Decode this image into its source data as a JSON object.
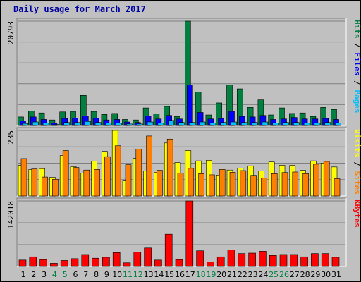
{
  "title": "Daily usage for March 2017",
  "colors": {
    "hits": "#008040",
    "files": "#0000ff",
    "pages": "#00c0ff",
    "visits": "#ffff00",
    "sites": "#ff8000",
    "kbytes": "#ff0000",
    "weekend_label": "#008040",
    "weekday_label": "#000000",
    "title": "#0000a0"
  },
  "chart_data": [
    {
      "type": "bar",
      "name": "hits-files-pages",
      "max_label": "20793",
      "ylim": [
        0,
        20793
      ],
      "grid": true,
      "legend": [
        "Pages",
        "Files",
        "Hits"
      ],
      "categories": [
        "1",
        "2",
        "3",
        "4",
        "5",
        "6",
        "7",
        "8",
        "9",
        "10",
        "11",
        "12",
        "13",
        "14",
        "15",
        "16",
        "17",
        "18",
        "19",
        "20",
        "21",
        "22",
        "23",
        "24",
        "25",
        "26",
        "27",
        "28",
        "29",
        "30",
        "31"
      ],
      "weekend_days": [
        4,
        5,
        11,
        12,
        18,
        19,
        25,
        26
      ],
      "series": [
        {
          "name": "Hits",
          "values": [
            1700,
            2900,
            2500,
            1100,
            2700,
            2800,
            6000,
            2800,
            2200,
            2400,
            1200,
            1100,
            3500,
            2300,
            3800,
            1800,
            20793,
            6700,
            2100,
            4500,
            8100,
            7300,
            3600,
            5100,
            2100,
            3500,
            2400,
            2500,
            1800,
            3600,
            3200
          ]
        },
        {
          "name": "Files",
          "values": [
            900,
            1700,
            1200,
            500,
            1400,
            1500,
            1900,
            1500,
            1100,
            1200,
            700,
            600,
            1900,
            1300,
            2000,
            1300,
            8100,
            2600,
            1300,
            1400,
            2800,
            1800,
            1700,
            2000,
            1200,
            1300,
            1600,
            1300,
            1300,
            1400,
            1200
          ]
        },
        {
          "name": "Pages",
          "values": [
            400,
            700,
            500,
            200,
            600,
            600,
            800,
            600,
            500,
            500,
            300,
            300,
            700,
            500,
            1000,
            600,
            600,
            700,
            500,
            600,
            700,
            600,
            600,
            700,
            500,
            600,
            600,
            500,
            500,
            600,
            500
          ]
        }
      ]
    },
    {
      "type": "bar",
      "name": "visits-sites",
      "max_label": "235",
      "ylim": [
        0,
        235
      ],
      "grid": true,
      "legend": [
        "Sites",
        "Visits"
      ],
      "categories": [
        "1",
        "2",
        "3",
        "4",
        "5",
        "6",
        "7",
        "8",
        "9",
        "10",
        "11",
        "12",
        "13",
        "14",
        "15",
        "16",
        "17",
        "18",
        "19",
        "20",
        "21",
        "22",
        "23",
        "24",
        "25",
        "26",
        "27",
        "28",
        "29",
        "30",
        "31"
      ],
      "series": [
        {
          "name": "Visits",
          "values": [
            110,
            95,
            98,
            67,
            145,
            105,
            82,
            125,
            160,
            235,
            54,
            135,
            90,
            85,
            190,
            120,
            163,
            126,
            128,
            75,
            93,
            100,
            108,
            90,
            122,
            110,
            110,
            92,
            126,
            118,
            104
          ]
        },
        {
          "name": "Sites",
          "values": [
            134,
            97,
            68,
            60,
            163,
            102,
            93,
            95,
            141,
            180,
            112,
            168,
            215,
            92,
            204,
            82,
            99,
            80,
            76,
            95,
            85,
            91,
            74,
            64,
            80,
            84,
            86,
            80,
            114,
            124,
            62
          ]
        }
      ]
    },
    {
      "type": "bar",
      "name": "kbytes",
      "max_label": "142018",
      "ylim": [
        0,
        142018
      ],
      "grid": true,
      "legend": [
        "KBytes"
      ],
      "categories": [
        "1",
        "2",
        "3",
        "4",
        "5",
        "6",
        "7",
        "8",
        "9",
        "10",
        "11",
        "12",
        "13",
        "14",
        "15",
        "16",
        "17",
        "18",
        "19",
        "20",
        "21",
        "22",
        "23",
        "24",
        "25",
        "26",
        "27",
        "28",
        "29",
        "30",
        "31"
      ],
      "series": [
        {
          "name": "KBytes",
          "values": [
            14000,
            21000,
            15000,
            7000,
            13000,
            17000,
            26000,
            18000,
            20000,
            30000,
            8000,
            31000,
            40000,
            14000,
            70000,
            15000,
            142018,
            34000,
            10000,
            21000,
            36000,
            28000,
            29000,
            33000,
            24000,
            26000,
            26000,
            21000,
            28000,
            28000,
            20000
          ]
        }
      ]
    }
  ]
}
